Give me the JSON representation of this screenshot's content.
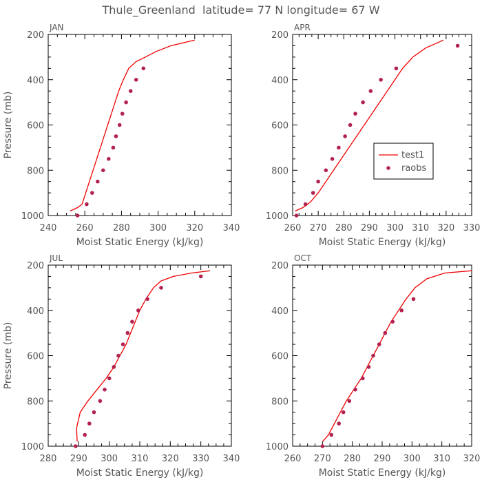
{
  "page_title": "Thule_Greenland  latitude= 77 N longitude= 67 W",
  "legend": {
    "model_label": "test1",
    "obs_label": "raobs",
    "model_color": "#ee0000",
    "obs_color": "#b3224f"
  },
  "chart_data": [
    {
      "type": "line",
      "panel_label": "JAN",
      "xlabel": "Moist Static Energy (kJ/kg)",
      "ylabel": "Pressure (mb)",
      "xlim": [
        240,
        340
      ],
      "xticks": [
        240,
        260,
        280,
        300,
        320,
        340
      ],
      "ylim": [
        1000,
        200
      ],
      "yticks": [
        200,
        400,
        600,
        800,
        1000
      ],
      "series": [
        {
          "name": "test1",
          "kind": "line",
          "x": [
            252,
            256,
            258.5,
            260.5,
            262.5,
            264.5,
            266.5,
            268.5,
            270.5,
            272.5,
            274.5,
            276.5,
            278.5,
            281,
            284,
            288,
            293,
            299,
            307,
            320
          ],
          "y": [
            980,
            965,
            950,
            900,
            850,
            800,
            750,
            700,
            650,
            600,
            550,
            500,
            450,
            400,
            350,
            320,
            300,
            275,
            250,
            225
          ]
        },
        {
          "name": "raobs",
          "kind": "scatter",
          "x": [
            256,
            261,
            264,
            267,
            270,
            273,
            275.5,
            277,
            279,
            280.5,
            282.5,
            285,
            288,
            292
          ],
          "y": [
            1000,
            950,
            900,
            850,
            800,
            750,
            700,
            650,
            600,
            550,
            500,
            450,
            400,
            350
          ]
        }
      ]
    },
    {
      "type": "line",
      "panel_label": "APR",
      "xlabel": "Moist Static Energy (kJ/kg)",
      "ylabel": "",
      "xlim": [
        260,
        330
      ],
      "xticks": [
        260,
        270,
        280,
        290,
        300,
        310,
        320,
        330
      ],
      "ylim": [
        1000,
        200
      ],
      "yticks": [
        200,
        400,
        600,
        800,
        1000
      ],
      "series": [
        {
          "name": "test1",
          "kind": "line",
          "x": [
            261,
            264,
            267,
            270,
            273,
            276,
            279,
            282,
            285,
            288,
            291,
            294,
            297,
            300,
            303,
            307,
            312,
            319
          ],
          "y": [
            980,
            965,
            940,
            900,
            850,
            800,
            750,
            700,
            650,
            600,
            550,
            500,
            450,
            400,
            350,
            300,
            260,
            225
          ]
        },
        {
          "name": "raobs",
          "kind": "scatter",
          "x": [
            261.5,
            265,
            268,
            270,
            273,
            275.5,
            278,
            280.5,
            282.5,
            284.5,
            287.5,
            290.5,
            294.5,
            300.5,
            324.5
          ],
          "y": [
            1000,
            950,
            900,
            850,
            800,
            750,
            700,
            650,
            600,
            550,
            500,
            450,
            400,
            350,
            250
          ]
        }
      ]
    },
    {
      "type": "line",
      "panel_label": "JUL",
      "xlabel": "Moist Static Energy (kJ/kg)",
      "ylabel": "Pressure (mb)",
      "xlim": [
        280,
        340
      ],
      "xticks": [
        280,
        290,
        300,
        310,
        320,
        330,
        340
      ],
      "ylim": [
        1000,
        200
      ],
      "yticks": [
        200,
        400,
        600,
        800,
        1000
      ],
      "series": [
        {
          "name": "test1",
          "kind": "line",
          "x": [
            289.5,
            289.3,
            290.5,
            293,
            296,
            299,
            301.5,
            303.5,
            305.5,
            307,
            308.5,
            310,
            312,
            314.5,
            317,
            321,
            327,
            333
          ],
          "y": [
            980,
            920,
            850,
            800,
            750,
            700,
            650,
            600,
            550,
            500,
            450,
            400,
            350,
            300,
            270,
            250,
            235,
            225
          ]
        },
        {
          "name": "raobs",
          "kind": "scatter",
          "x": [
            289,
            292,
            293.5,
            295,
            297,
            298.5,
            300,
            301.5,
            303,
            304.5,
            306,
            307.5,
            309.5,
            312.5,
            317,
            330
          ],
          "y": [
            1000,
            950,
            900,
            850,
            800,
            750,
            700,
            650,
            600,
            550,
            500,
            450,
            400,
            350,
            300,
            250
          ]
        }
      ]
    },
    {
      "type": "line",
      "panel_label": "OCT",
      "xlabel": "Moist Static Energy (kJ/kg)",
      "ylabel": "",
      "xlim": [
        260,
        320
      ],
      "xticks": [
        260,
        270,
        280,
        290,
        300,
        310,
        320
      ],
      "ylim": [
        1000,
        200
      ],
      "yticks": [
        200,
        400,
        600,
        800,
        1000
      ],
      "series": [
        {
          "name": "test1",
          "kind": "line",
          "x": [
            270,
            272,
            274,
            276,
            278,
            280.5,
            283,
            285,
            287,
            289,
            291,
            293,
            295.5,
            298,
            301,
            305,
            311,
            320
          ],
          "y": [
            980,
            950,
            900,
            850,
            800,
            750,
            700,
            650,
            600,
            550,
            500,
            450,
            400,
            350,
            300,
            260,
            235,
            225
          ]
        },
        {
          "name": "raobs",
          "kind": "scatter",
          "x": [
            270,
            273,
            275.5,
            277,
            279,
            281,
            283.5,
            285.5,
            287,
            289,
            291,
            293.5,
            296.5,
            300.5
          ],
          "y": [
            1000,
            950,
            900,
            850,
            800,
            750,
            700,
            650,
            600,
            550,
            500,
            450,
            400,
            350
          ]
        }
      ]
    }
  ]
}
